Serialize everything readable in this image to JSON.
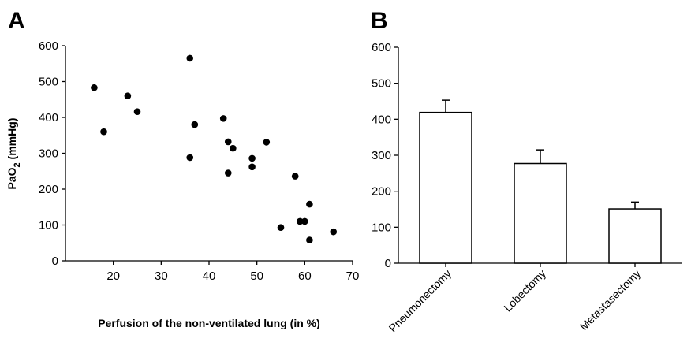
{
  "chart_data": [
    {
      "type": "scatter",
      "panel_label": "A",
      "xlabel": "Perfusion of the non-ventilated lung (in %)",
      "ylabel_main": "PaO",
      "ylabel_sub": "2",
      "ylabel_rest": " (mmHg)",
      "xlim": [
        10,
        70
      ],
      "ylim": [
        0,
        600
      ],
      "xticks": [
        20,
        30,
        40,
        50,
        60,
        70
      ],
      "yticks": [
        0,
        100,
        200,
        300,
        400,
        500,
        600
      ],
      "points": [
        {
          "x": 16,
          "y": 483
        },
        {
          "x": 18,
          "y": 360
        },
        {
          "x": 23,
          "y": 460
        },
        {
          "x": 25,
          "y": 416
        },
        {
          "x": 36,
          "y": 565
        },
        {
          "x": 36,
          "y": 288
        },
        {
          "x": 37,
          "y": 380
        },
        {
          "x": 43,
          "y": 397
        },
        {
          "x": 44,
          "y": 332
        },
        {
          "x": 44,
          "y": 245
        },
        {
          "x": 45,
          "y": 314
        },
        {
          "x": 49,
          "y": 286
        },
        {
          "x": 49,
          "y": 262
        },
        {
          "x": 52,
          "y": 331
        },
        {
          "x": 55,
          "y": 93
        },
        {
          "x": 58,
          "y": 236
        },
        {
          "x": 59,
          "y": 110
        },
        {
          "x": 60,
          "y": 110
        },
        {
          "x": 61,
          "y": 158
        },
        {
          "x": 61,
          "y": 58
        },
        {
          "x": 66,
          "y": 81
        }
      ]
    },
    {
      "type": "bar",
      "panel_label": "B",
      "categories": [
        "Pneumonectomy",
        "Lobectomy",
        "Metastasectomy"
      ],
      "values": [
        419,
        277,
        151
      ],
      "errors": [
        34,
        38,
        19
      ],
      "ylim": [
        0,
        600
      ],
      "yticks": [
        0,
        100,
        200,
        300,
        400,
        500,
        600
      ]
    }
  ]
}
